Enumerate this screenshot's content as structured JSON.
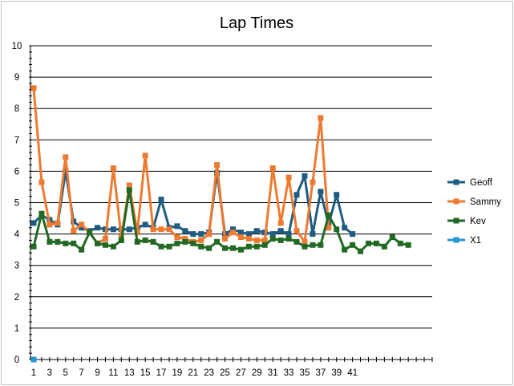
{
  "chart_data": {
    "type": "line",
    "title": "Lap Times",
    "xlabel": "",
    "ylabel": "",
    "ylim": [
      0,
      10
    ],
    "yticks": [
      0,
      1,
      2,
      3,
      4,
      5,
      6,
      7,
      8,
      9,
      10
    ],
    "xlim": [
      1,
      51
    ],
    "xtick_labels": [
      1,
      3,
      5,
      7,
      9,
      11,
      13,
      15,
      17,
      19,
      21,
      23,
      25,
      27,
      29,
      31,
      33,
      35,
      37,
      39,
      41
    ],
    "grid": "horizontal",
    "legend": "right",
    "series": [
      {
        "name": "Geoff",
        "color": "#1f5c82",
        "x": [
          1,
          2,
          3,
          4,
          5,
          6,
          7,
          8,
          9,
          10,
          11,
          12,
          13,
          14,
          15,
          16,
          17,
          18,
          19,
          20,
          21,
          22,
          23,
          24,
          25,
          26,
          27,
          28,
          29,
          30,
          31,
          32,
          33,
          34,
          35,
          36,
          37,
          38,
          39,
          40,
          41
        ],
        "values": [
          4.35,
          4.6,
          4.45,
          4.3,
          6.0,
          4.4,
          4.2,
          4.1,
          4.2,
          4.15,
          4.15,
          4.15,
          4.15,
          4.2,
          4.3,
          4.2,
          5.1,
          4.2,
          4.25,
          4.1,
          4.0,
          4.0,
          4.05,
          5.95,
          4.0,
          4.15,
          4.05,
          4.0,
          4.1,
          4.05,
          4.0,
          4.1,
          4.0,
          5.25,
          5.85,
          4.0,
          5.35,
          4.3,
          5.25,
          4.2,
          4.0
        ]
      },
      {
        "name": "Sammy",
        "color": "#ee7a31",
        "x": [
          1,
          2,
          3,
          4,
          5,
          6,
          7,
          8,
          9,
          10,
          11,
          12,
          13,
          14,
          15,
          16,
          17,
          18,
          19,
          20,
          21,
          22,
          23,
          24,
          25,
          26,
          27,
          28,
          29,
          30,
          31,
          32,
          33,
          34,
          35,
          36,
          37,
          38
        ],
        "values": [
          8.65,
          5.65,
          4.3,
          4.35,
          6.45,
          4.1,
          4.3,
          4.05,
          3.7,
          3.85,
          6.1,
          3.9,
          5.55,
          4.05,
          6.5,
          4.15,
          4.15,
          4.15,
          3.9,
          3.85,
          3.75,
          3.8,
          4.0,
          6.2,
          3.85,
          4.05,
          3.9,
          3.85,
          3.8,
          3.8,
          6.1,
          4.35,
          5.8,
          4.1,
          3.75,
          5.65,
          7.7,
          4.2
        ]
      },
      {
        "name": "Kev",
        "color": "#226a24",
        "x": [
          1,
          2,
          3,
          4,
          5,
          6,
          7,
          8,
          9,
          10,
          11,
          12,
          13,
          14,
          15,
          16,
          17,
          18,
          19,
          20,
          21,
          22,
          23,
          24,
          25,
          26,
          27,
          28,
          29,
          30,
          31,
          32,
          33,
          34,
          35,
          36,
          37,
          38,
          39,
          40,
          41,
          42,
          43,
          44,
          45,
          46,
          47,
          48
        ],
        "values": [
          3.6,
          4.65,
          3.75,
          3.75,
          3.7,
          3.7,
          3.5,
          4.05,
          3.7,
          3.65,
          3.6,
          3.8,
          5.4,
          3.75,
          3.8,
          3.75,
          3.6,
          3.6,
          3.7,
          3.75,
          3.7,
          3.6,
          3.55,
          3.75,
          3.55,
          3.55,
          3.5,
          3.6,
          3.6,
          3.65,
          3.85,
          3.8,
          3.85,
          3.75,
          3.6,
          3.65,
          3.65,
          4.6,
          4.15,
          3.5,
          3.65,
          3.45,
          3.7,
          3.7,
          3.6,
          3.9,
          3.7,
          3.65
        ]
      },
      {
        "name": "X1",
        "color": "#2596d2",
        "x": [
          1
        ],
        "values": [
          0
        ]
      }
    ]
  }
}
